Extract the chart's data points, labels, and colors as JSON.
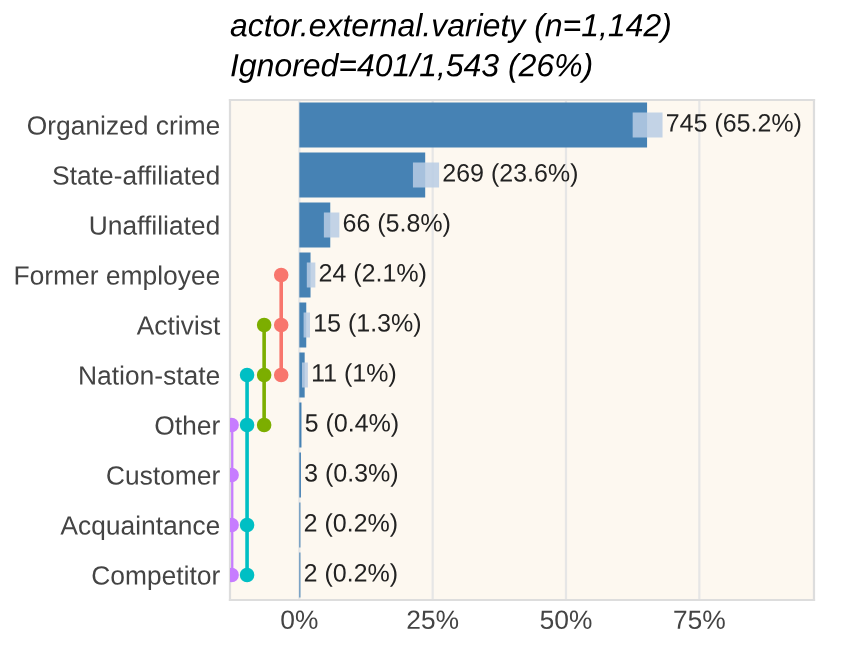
{
  "chart_data": {
    "type": "bar",
    "orientation": "horizontal",
    "title": "actor.external.variety (n=1,142)",
    "subtitle": "Ignored=401/1,543 (26%)",
    "categories": [
      "Organized crime",
      "State-affiliated",
      "Unaffiliated",
      "Former employee",
      "Activist",
      "Nation-state",
      "Other",
      "Customer",
      "Acquaintance",
      "Competitor"
    ],
    "values": [
      65.2,
      23.6,
      5.8,
      2.1,
      1.3,
      1,
      0.4,
      0.3,
      0.2,
      0.2
    ],
    "value_labels": [
      "745 (65.2%)",
      "269 (23.6%)",
      "66 (5.8%)",
      "24 (2.1%)",
      "15 (1.3%)",
      "11 (1%)",
      "5 (0.4%)",
      "3 (0.3%)",
      "2 (0.2%)",
      "2 (0.2%)"
    ],
    "errors": [
      [
        62.5,
        68.1
      ],
      [
        21.3,
        26.2
      ],
      [
        4.6,
        7.5
      ],
      [
        1.4,
        3.0
      ],
      [
        0.8,
        2.0
      ],
      [
        0.5,
        1.6
      ],
      null,
      null,
      null,
      null
    ],
    "color": "#4682b4",
    "xlim": [
      -13,
      96.5
    ],
    "xticks": [
      {
        "value": 0,
        "label": "0%"
      },
      {
        "value": 25,
        "label": "25%"
      },
      {
        "value": 50,
        "label": "50%"
      },
      {
        "value": 75,
        "label": "75%"
      }
    ],
    "grid": "x",
    "legend": false
  }
}
